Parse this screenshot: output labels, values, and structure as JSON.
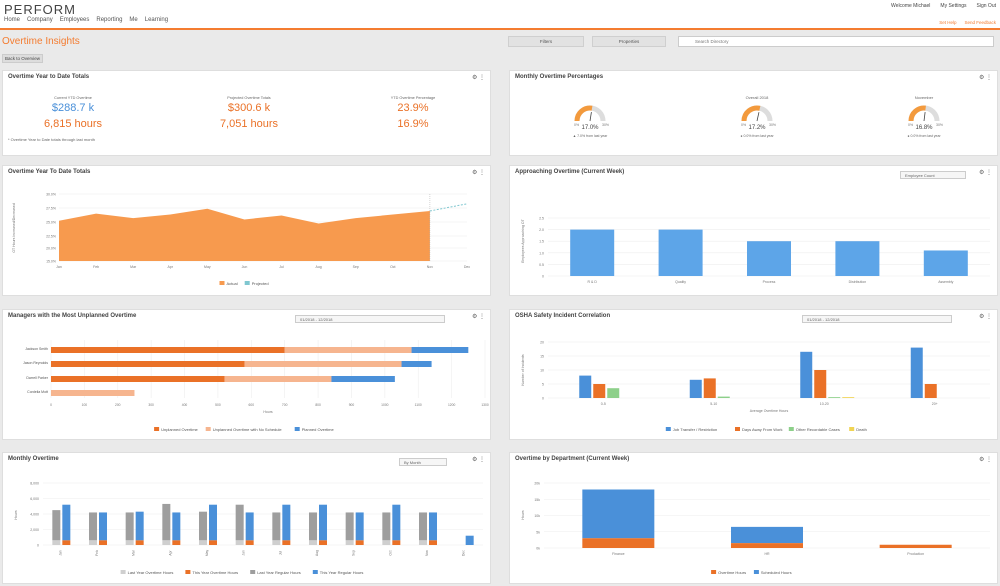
{
  "app": {
    "logo": "PERFORM",
    "nav": [
      "Home",
      "Company",
      "Employees",
      "Reporting",
      "Me",
      "Learning"
    ],
    "top_links": [
      "Welcome Michael",
      "My Settings",
      "Sign Out"
    ],
    "top_links2": [
      "Set Help",
      "Send Feedback"
    ]
  },
  "page": {
    "title": "Overtime Insights",
    "breadcrumb": "Back to Overview",
    "btn_filters": "Filters",
    "btn_properties": "Properties",
    "search_placeholder": "Search Directory"
  },
  "ytd": {
    "title": "Overtime Year to Date Totals",
    "cols": [
      {
        "label": "Current YTD Overtime",
        "money": "$288.7 k",
        "hours": "6,815 hours"
      },
      {
        "label": "Projected Overtime Totals",
        "money": "$300.6 k",
        "hours": "7,051 hours"
      },
      {
        "label": "YTD Overtime Percentage",
        "money": "23.9%",
        "hours": "16.9%"
      }
    ],
    "note": "* Overtime Year to Date totals through last month"
  },
  "gauges": {
    "title": "Monthly Overtime Percentages",
    "items": [
      {
        "label": "",
        "value": "17.0%",
        "sub": "7.0% from last year",
        "dir": "up",
        "fill": 0.55
      },
      {
        "label": "Overall 2018",
        "value": "17.2%",
        "sub": "0.0% from last year",
        "dir": "flat",
        "fill": 0.57
      },
      {
        "label": "November",
        "value": "16.8%",
        "sub": "0.0% from last year",
        "dir": "flat",
        "fill": 0.54
      }
    ],
    "min": "0%",
    "max": "30%"
  },
  "area": {
    "title": "Overtime Year To Date Totals",
    "ylabel": "OT Hours Increased/Decreased",
    "yticks": [
      "30.0%",
      "27.5%",
      "25.0%",
      "22.5%",
      "20.0%",
      "15.0%"
    ],
    "months": [
      "Jan",
      "Feb",
      "Mar",
      "Apr",
      "May",
      "Jun",
      "Jul",
      "Aug",
      "Sep",
      "Oct",
      "Nov",
      "Dec"
    ],
    "legend": [
      "Actual",
      "Projected"
    ],
    "colors": {
      "actual": "#f79a4e",
      "projected": "#7fc7d0"
    }
  },
  "approach": {
    "title": "Approaching Overtime (Current Week)",
    "select": "Employee Count",
    "ylabel": "Employees Approaching OT",
    "yticks": [
      "2.5",
      "2.0",
      "1.5",
      "1.0",
      "0.5",
      "0"
    ],
    "categories": [
      "R & D",
      "Quality",
      "Process",
      "Distribution",
      "Assembly"
    ],
    "color": "#5da5e8"
  },
  "managers": {
    "title": "Managers with the Most Unplanned Overtime",
    "select": "01/2018 - 12/2018",
    "rows": [
      "Jackson Smith",
      "Jason Reynolds",
      "Darrell Parker",
      "Cordelia Mott"
    ],
    "xticks": [
      "0",
      "100",
      "200",
      "300",
      "400",
      "500",
      "600",
      "700",
      "800",
      "900",
      "1000",
      "1100",
      "1200",
      "1300"
    ],
    "xlabel": "Hours",
    "legend": [
      "Unplanned Overtime",
      "Unplanned Overtime with No Schedule",
      "Planned Overtime"
    ],
    "colors": [
      "#ea7127",
      "#f6b58f",
      "#4a90d9"
    ]
  },
  "osha": {
    "title": "OSHA Safety Incident Correlation",
    "select": "01/2018 - 12/2018",
    "ylabel": "Number of Incidents",
    "yticks": [
      "20",
      "15",
      "10",
      "5",
      "0"
    ],
    "groups": [
      "0-5",
      "5-10",
      "10-20",
      "20+"
    ],
    "xlabel": "Average Overtime Hours",
    "legend": [
      "Job Transfer / Restriction",
      "Days Away From Work",
      "Other Recordable Cases",
      "Death"
    ],
    "colors": [
      "#4a90d9",
      "#ea7127",
      "#8dd08a",
      "#f0d453"
    ]
  },
  "monthly": {
    "title": "Monthly Overtime",
    "select": "By Month",
    "ylabel": "Hours",
    "yticks": [
      "8,000",
      "6,000",
      "4,000",
      "2,000",
      "0"
    ],
    "months": [
      "Jan",
      "Feb",
      "Mar",
      "Apr",
      "May",
      "Jun",
      "Jul",
      "Aug",
      "Sep",
      "Oct",
      "Nov",
      "Dec"
    ],
    "legend": [
      "Last Year Overtime Hours",
      "This Year Overtime Hours",
      "Last Year Regular Hours",
      "This Year Regular Hours"
    ],
    "colors": [
      "#cfcfcf",
      "#ea7127",
      "#9e9e9e",
      "#4a90d9"
    ]
  },
  "dept": {
    "title": "Overtime by Department (Current Week)",
    "ylabel": "Hours",
    "yticks": [
      "20k",
      "15k",
      "10k",
      "5k",
      "0k"
    ],
    "categories": [
      "Finance",
      "HR",
      "Production"
    ],
    "legend": [
      "Overtime Hours",
      "Scheduled Hours"
    ],
    "colors": [
      "#ea7127",
      "#4a90d9"
    ]
  },
  "chart_data": [
    {
      "type": "area",
      "title": "Overtime Year To Date Totals",
      "x": [
        "Jan",
        "Feb",
        "Mar",
        "Apr",
        "May",
        "Jun",
        "Jul",
        "Aug",
        "Sep",
        "Oct",
        "Nov",
        "Dec"
      ],
      "ylim": [
        15,
        30
      ],
      "series": [
        {
          "name": "Actual",
          "values": [
            24.0,
            25.6,
            24.6,
            25.4,
            26.7,
            24.3,
            25.2,
            23.4,
            24.6,
            25.4,
            26.2,
            null
          ]
        },
        {
          "name": "Projected",
          "values": [
            null,
            null,
            null,
            null,
            null,
            null,
            null,
            null,
            null,
            null,
            26.2,
            27.8
          ]
        }
      ]
    },
    {
      "type": "bar",
      "title": "Approaching Overtime (Current Week)",
      "categories": [
        "R & D",
        "Quality",
        "Process",
        "Distribution",
        "Assembly"
      ],
      "values": [
        2.0,
        2.0,
        1.5,
        1.5,
        1.1
      ],
      "ylim": [
        0,
        2.5
      ]
    },
    {
      "type": "bar",
      "title": "Managers with the Most Unplanned Overtime",
      "categories": [
        "Jackson Smith",
        "Jason Reynolds",
        "Darrell Parker",
        "Cordelia Mott"
      ],
      "series": [
        {
          "name": "Unplanned Overtime",
          "values": [
            700,
            580,
            520,
            0
          ]
        },
        {
          "name": "Unplanned Overtime with No Schedule",
          "values": [
            1080,
            1050,
            840,
            250
          ]
        },
        {
          "name": "Planned Overtime",
          "values": [
            1250,
            1140,
            1030,
            0
          ]
        }
      ],
      "xlim": [
        0,
        1300
      ]
    },
    {
      "type": "bar",
      "title": "OSHA Safety Incident Correlation",
      "categories": [
        "0-5",
        "5-10",
        "10-20",
        "20+"
      ],
      "series": [
        {
          "name": "Job Transfer / Restriction",
          "values": [
            8,
            6.5,
            16.5,
            18
          ]
        },
        {
          "name": "Days Away From Work",
          "values": [
            5,
            7,
            10,
            5
          ]
        },
        {
          "name": "Other Recordable Cases",
          "values": [
            3.5,
            0.5,
            0.3,
            0
          ]
        },
        {
          "name": "Death",
          "values": [
            0,
            0,
            0.3,
            0
          ]
        }
      ],
      "ylim": [
        0,
        20
      ]
    },
    {
      "type": "bar",
      "title": "Monthly Overtime",
      "categories": [
        "Jan",
        "Feb",
        "Mar",
        "Apr",
        "May",
        "Jun",
        "Jul",
        "Aug",
        "Sep",
        "Oct",
        "Nov",
        "Dec"
      ],
      "series": [
        {
          "name": "Last Year Overtime Hours",
          "values": [
            600,
            600,
            600,
            600,
            600,
            600,
            600,
            600,
            600,
            600,
            600,
            0
          ]
        },
        {
          "name": "This Year Overtime Hours",
          "values": [
            600,
            600,
            600,
            600,
            600,
            600,
            600,
            600,
            600,
            600,
            600,
            0
          ]
        },
        {
          "name": "Last Year Regular Hours",
          "values": [
            4500,
            4200,
            4200,
            5300,
            4300,
            5200,
            4200,
            4200,
            4200,
            4200,
            4200,
            0
          ]
        },
        {
          "name": "This Year Regular Hours",
          "values": [
            5200,
            4200,
            4300,
            4200,
            5200,
            4200,
            5200,
            5200,
            4200,
            5200,
            4200,
            1200
          ]
        }
      ],
      "ylim": [
        0,
        8000
      ]
    },
    {
      "type": "bar",
      "title": "Overtime by Department (Current Week)",
      "categories": [
        "Finance",
        "HR",
        "Production"
      ],
      "series": [
        {
          "name": "Overtime Hours",
          "values": [
            3000,
            1500,
            1000
          ]
        },
        {
          "name": "Scheduled Hours",
          "values": [
            15000,
            5000,
            0
          ]
        }
      ],
      "ylim": [
        0,
        20000
      ]
    }
  ]
}
